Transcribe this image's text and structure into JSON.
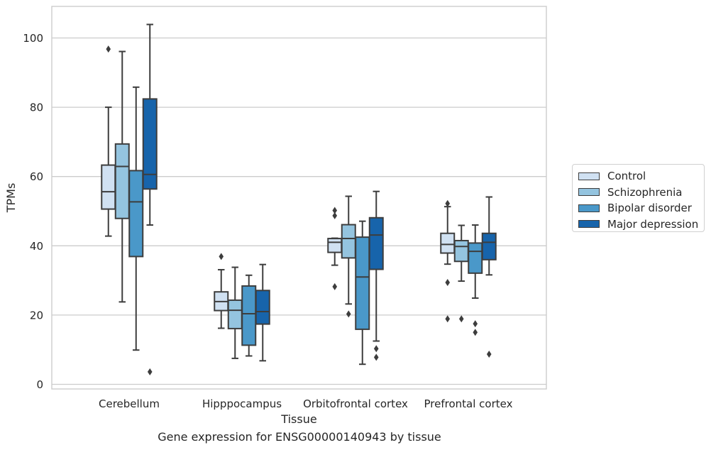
{
  "chart_data": {
    "type": "box",
    "xlabel": "Tissue",
    "ylabel": "TPMs",
    "caption": "Gene expression for ENSG00000140943 by tissue",
    "ylim": [
      -1,
      109
    ],
    "yticks": [
      0,
      20,
      40,
      60,
      80,
      100
    ],
    "grid": "horizontal",
    "legend_position": "right",
    "categories": [
      "Cerebellum",
      "Hipppocampus",
      "Orbitofrontal cortex",
      "Prefrontal cortex"
    ],
    "series": [
      {
        "name": "Control",
        "color": "#d0e1f2",
        "boxes": [
          {
            "whislo": 42.8,
            "q1": 50.6,
            "med": 55.6,
            "q3": 63.3,
            "whishi": 80.0,
            "fliers": [
              96.8
            ]
          },
          {
            "whislo": 16.2,
            "q1": 21.3,
            "med": 23.9,
            "q3": 26.7,
            "whishi": 33.1,
            "fliers": [
              36.9
            ]
          },
          {
            "whislo": 34.4,
            "q1": 38.1,
            "med": 41.0,
            "q3": 42.1,
            "whishi": 42.2,
            "fliers": [
              50.2,
              48.7,
              28.2
            ]
          },
          {
            "whislo": 34.7,
            "q1": 37.9,
            "med": 40.4,
            "q3": 43.6,
            "whishi": 51.3,
            "fliers": [
              52.2,
              29.4,
              18.9
            ]
          }
        ]
      },
      {
        "name": "Schizophrenia",
        "color": "#94c4df",
        "boxes": [
          {
            "whislo": 23.8,
            "q1": 47.9,
            "med": 62.9,
            "q3": 69.4,
            "whishi": 96.1,
            "fliers": []
          },
          {
            "whislo": 7.5,
            "q1": 16.1,
            "med": 21.4,
            "q3": 24.3,
            "whishi": 33.8,
            "fliers": []
          },
          {
            "whislo": 23.2,
            "q1": 36.5,
            "med": 42.1,
            "q3": 46.1,
            "whishi": 54.3,
            "fliers": [
              20.3
            ]
          },
          {
            "whislo": 29.8,
            "q1": 35.5,
            "med": 39.8,
            "q3": 41.5,
            "whishi": 45.9,
            "fliers": [
              18.9
            ]
          }
        ]
      },
      {
        "name": "Bipolar disorder",
        "color": "#4a98c9",
        "boxes": [
          {
            "whislo": 9.9,
            "q1": 36.9,
            "med": 52.7,
            "q3": 61.7,
            "whishi": 85.8,
            "fliers": []
          },
          {
            "whislo": 8.2,
            "q1": 11.3,
            "med": 20.4,
            "q3": 28.4,
            "whishi": 31.5,
            "fliers": []
          },
          {
            "whislo": 5.8,
            "q1": 15.9,
            "med": 31.0,
            "q3": 42.5,
            "whishi": 47.1,
            "fliers": []
          },
          {
            "whislo": 24.9,
            "q1": 32.1,
            "med": 38.4,
            "q3": 40.8,
            "whishi": 46.0,
            "fliers": [
              17.5,
              15.0
            ]
          }
        ]
      },
      {
        "name": "Major depression",
        "color": "#1764ab",
        "boxes": [
          {
            "whislo": 46.0,
            "q1": 56.4,
            "med": 60.6,
            "q3": 82.4,
            "whishi": 103.9,
            "fliers": [
              3.6
            ]
          },
          {
            "whislo": 6.8,
            "q1": 17.4,
            "med": 21.0,
            "q3": 27.1,
            "whishi": 34.6,
            "fliers": []
          },
          {
            "whislo": 12.5,
            "q1": 33.2,
            "med": 43.1,
            "q3": 48.1,
            "whishi": 55.7,
            "fliers": [
              10.3,
              7.8
            ]
          },
          {
            "whislo": 31.6,
            "q1": 36.0,
            "med": 41.0,
            "q3": 43.6,
            "whishi": 54.1,
            "fliers": [
              8.7
            ]
          }
        ]
      }
    ]
  }
}
